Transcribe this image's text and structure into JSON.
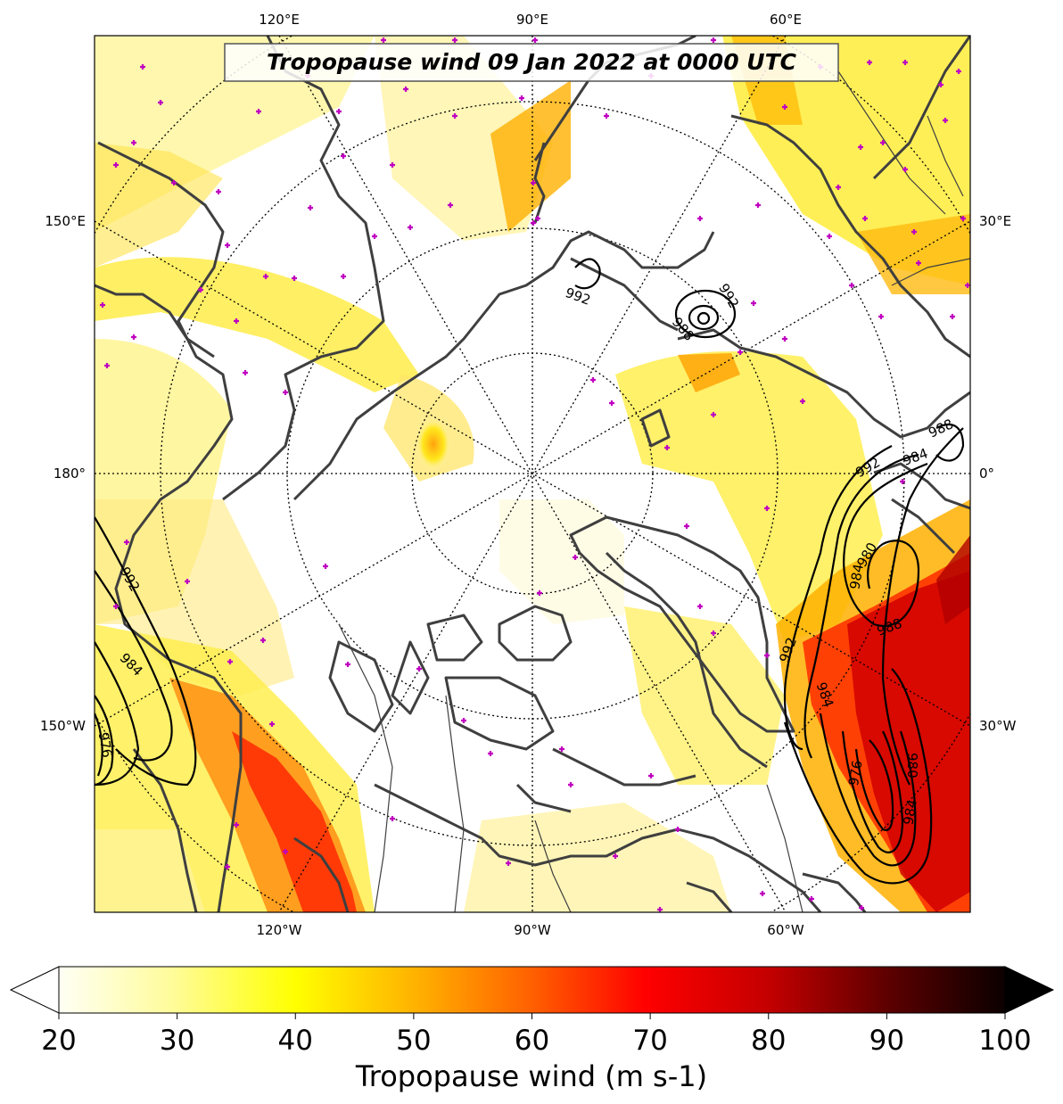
{
  "map": {
    "title": "Tropopause wind 09 Jan 2022 at 0000 UTC",
    "projection": "north polar stereographic",
    "top_ticks": [
      "120°E",
      "90°E",
      "60°E"
    ],
    "bottom_ticks": [
      "120°W",
      "90°W",
      "60°W"
    ],
    "left_ticks": [
      "150°E",
      "180°",
      "150°W"
    ],
    "right_ticks": [
      "30°E",
      "0°",
      "30°W"
    ],
    "contour_labels": [
      "992",
      "988",
      "992",
      "988",
      "984",
      "992",
      "980",
      "984",
      "988",
      "992",
      "984",
      "976",
      "980",
      "984",
      "992",
      "984",
      "976"
    ],
    "colors": {
      "coastline": "#3f3f3f",
      "markers": "#c000c0",
      "contours": "#000000",
      "wind_low": "#fffbe6",
      "wind_mid": "#ffe400",
      "wind_high": "#e00000"
    }
  },
  "colorbar": {
    "label": "Tropopause wind (m s-1)",
    "min": 20,
    "max": 100,
    "ticks": [
      "20",
      "30",
      "40",
      "50",
      "60",
      "70",
      "80",
      "90",
      "100"
    ],
    "colormap": "hot_r",
    "extend": "both"
  }
}
